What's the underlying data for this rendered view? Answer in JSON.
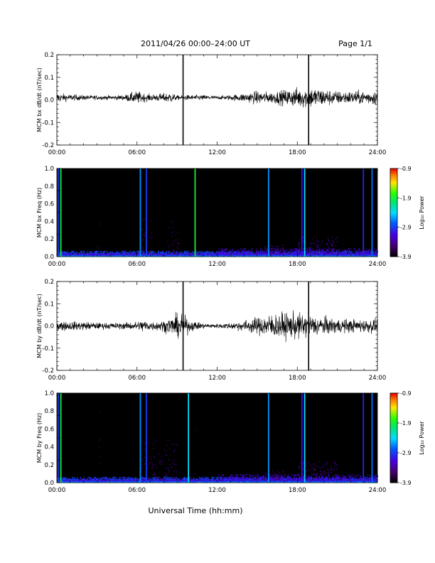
{
  "header": {
    "title": "2011/04/26  00:00–24:00 UT",
    "page": "Page 1/1"
  },
  "xaxis": {
    "label": "Universal Time (hh:mm)",
    "ticks": [
      "00:00",
      "06:00",
      "12:00",
      "18:00",
      "24:00"
    ],
    "range_hours": [
      0,
      24
    ]
  },
  "colorbar": {
    "label": "Log₁₀ Power",
    "ticks": [
      "-0.9",
      "-1.9",
      "-2.9",
      "-3.9"
    ],
    "range": [
      -3.9,
      -0.9
    ]
  },
  "chart_data": [
    {
      "type": "line",
      "ylabel": "MCM bx dB/dt (nT/sec)",
      "ylim": [
        -0.2,
        0.2
      ],
      "yticks": [
        "0.2",
        "0.1",
        "0.0",
        "-0.1",
        "-0.2"
      ],
      "baseline": 0.01,
      "amplitude_envelope": [
        [
          0,
          0.02
        ],
        [
          1,
          0.015
        ],
        [
          2,
          0.012
        ],
        [
          3,
          0.01
        ],
        [
          4,
          0.01
        ],
        [
          5,
          0.012
        ],
        [
          6,
          0.03
        ],
        [
          6.5,
          0.02
        ],
        [
          7,
          0.015
        ],
        [
          8,
          0.02
        ],
        [
          8.5,
          0.025
        ],
        [
          9,
          0.01
        ],
        [
          10,
          0.012
        ],
        [
          11,
          0.012
        ],
        [
          12,
          0.008
        ],
        [
          13,
          0.012
        ],
        [
          14,
          0.02
        ],
        [
          15,
          0.03
        ],
        [
          16,
          0.025
        ],
        [
          17,
          0.035
        ],
        [
          18,
          0.045
        ],
        [
          19,
          0.05
        ],
        [
          20,
          0.04
        ],
        [
          21,
          0.03
        ],
        [
          22,
          0.03
        ],
        [
          23,
          0.03
        ],
        [
          24,
          0.035
        ]
      ],
      "spikes_hours": [
        9.45,
        18.85
      ]
    },
    {
      "type": "heatmap",
      "ylabel": "MCM bx Freq (Hz)",
      "ylim": [
        0,
        1.0
      ],
      "yticks": [
        "1.0",
        "0.8",
        "0.6",
        "0.4",
        "0.2",
        "0.0"
      ],
      "vertical_lines": [
        [
          0.1,
          -2.9
        ],
        [
          0.3,
          -1.9
        ],
        [
          6.25,
          -2.6
        ],
        [
          6.7,
          -2.9
        ],
        [
          10.35,
          -1.9
        ],
        [
          15.85,
          -2.6
        ],
        [
          18.35,
          -3.1
        ],
        [
          18.55,
          -2.4
        ],
        [
          22.95,
          -3.0
        ],
        [
          23.6,
          -2.7
        ]
      ],
      "activity": [
        [
          0,
          24,
          0.03,
          -2.9
        ],
        [
          6.2,
          7.2,
          0.45,
          -3.5
        ],
        [
          8.2,
          9.2,
          0.4,
          -3.6
        ],
        [
          15.5,
          17,
          0.1,
          -3.5
        ],
        [
          18,
          21,
          0.2,
          -3.4
        ],
        [
          3,
          3.3,
          0.85,
          -3.7
        ],
        [
          12,
          24,
          0.06,
          -3.2
        ]
      ]
    },
    {
      "type": "line",
      "ylabel": "MCM by dB/dt (nT/sec)",
      "ylim": [
        -0.2,
        0.2
      ],
      "yticks": [
        "0.2",
        "0.1",
        "0.0",
        "-0.1",
        "-0.2"
      ],
      "baseline": 0.0,
      "amplitude_envelope": [
        [
          0,
          0.025
        ],
        [
          1,
          0.02
        ],
        [
          2,
          0.02
        ],
        [
          3,
          0.015
        ],
        [
          4,
          0.015
        ],
        [
          5,
          0.015
        ],
        [
          6,
          0.02
        ],
        [
          6.5,
          0.03
        ],
        [
          7,
          0.02
        ],
        [
          8,
          0.025
        ],
        [
          8.7,
          0.045
        ],
        [
          9.3,
          0.06
        ],
        [
          10,
          0.025
        ],
        [
          11,
          0.012
        ],
        [
          12,
          0.01
        ],
        [
          13,
          0.015
        ],
        [
          14,
          0.025
        ],
        [
          15,
          0.04
        ],
        [
          16,
          0.055
        ],
        [
          17,
          0.06
        ],
        [
          18,
          0.06
        ],
        [
          19,
          0.05
        ],
        [
          20,
          0.04
        ],
        [
          21,
          0.035
        ],
        [
          22,
          0.03
        ],
        [
          23,
          0.03
        ],
        [
          24,
          0.035
        ]
      ],
      "spikes_hours": [
        9.45,
        18.85
      ]
    },
    {
      "type": "heatmap",
      "ylabel": "MCM by Freq (Hz)",
      "ylim": [
        0,
        1.0
      ],
      "yticks": [
        "1.0",
        "0.8",
        "0.6",
        "0.4",
        "0.2",
        "0.0"
      ],
      "vertical_lines": [
        [
          0.1,
          -2.9
        ],
        [
          0.3,
          -1.9
        ],
        [
          6.25,
          -2.6
        ],
        [
          6.7,
          -2.9
        ],
        [
          9.85,
          -2.4
        ],
        [
          15.85,
          -2.6
        ],
        [
          18.35,
          -3.1
        ],
        [
          18.55,
          -2.4
        ],
        [
          22.95,
          -3.0
        ],
        [
          23.6,
          -2.7
        ]
      ],
      "activity": [
        [
          0,
          24,
          0.03,
          -2.9
        ],
        [
          6.2,
          9,
          0.45,
          -3.5
        ],
        [
          3,
          3.3,
          0.85,
          -3.7
        ],
        [
          10.3,
          10.6,
          0.85,
          -3.7
        ],
        [
          15.5,
          17,
          0.1,
          -3.5
        ],
        [
          18,
          21,
          0.2,
          -3.4
        ],
        [
          12,
          24,
          0.06,
          -3.2
        ]
      ]
    }
  ]
}
